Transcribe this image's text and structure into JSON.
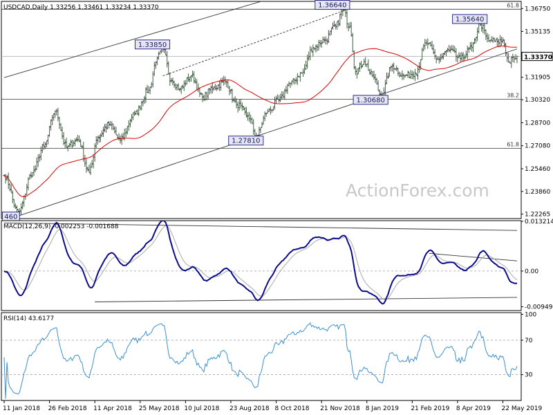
{
  "chart_data": [
    {
      "type": "ohlc",
      "panel": "price",
      "header": "USDCAD,Daily  1.33256 1.33461 1.33234 1.33370",
      "last_price": 1.3337,
      "last_price_label": "1.33370",
      "y_ticks": [
        1.3675,
        1.35135,
        1.3352,
        1.31905,
        1.3032,
        1.287,
        1.2708,
        1.2546,
        1.2386,
        1.22265
      ],
      "y_tick_labels": [
        "1.36750",
        "1.35135",
        "1.33520",
        "1.31905",
        "1.30320",
        "1.28700",
        "1.27080",
        "1.25460",
        "1.23860",
        "1.22265"
      ],
      "ylim": [
        1.2195,
        1.3725
      ],
      "x_ticks": [
        {
          "index": 0,
          "label": "11 Jan 2018"
        },
        {
          "index": 32,
          "label": "26 Feb 2018"
        },
        {
          "index": 64,
          "label": "11 Apr 2018"
        },
        {
          "index": 96,
          "label": "25 May 2018"
        },
        {
          "index": 128,
          "label": "10 Jul 2018"
        },
        {
          "index": 160,
          "label": "23 Aug 2018"
        },
        {
          "index": 192,
          "label": "8 Oct 2018"
        },
        {
          "index": 224,
          "label": "21 Nov 2018"
        },
        {
          "index": 256,
          "label": "8 Jan 2019"
        },
        {
          "index": 288,
          "label": "21 Feb 2019"
        },
        {
          "index": 320,
          "label": "8 Apr 2019"
        },
        {
          "index": 352,
          "label": "22 May 2019"
        }
      ],
      "x_range": [
        0,
        362
      ],
      "anchors": [
        [
          0,
          1.25
        ],
        [
          10,
          1.224
        ],
        [
          20,
          1.252
        ],
        [
          28,
          1.27
        ],
        [
          36,
          1.295
        ],
        [
          44,
          1.27
        ],
        [
          52,
          1.275
        ],
        [
          60,
          1.252
        ],
        [
          66,
          1.277
        ],
        [
          74,
          1.286
        ],
        [
          82,
          1.275
        ],
        [
          92,
          1.293
        ],
        [
          102,
          1.31
        ],
        [
          108,
          1.333
        ],
        [
          112,
          1.3385
        ],
        [
          118,
          1.317
        ],
        [
          124,
          1.311
        ],
        [
          132,
          1.32
        ],
        [
          140,
          1.305
        ],
        [
          148,
          1.312
        ],
        [
          156,
          1.316
        ],
        [
          164,
          1.3
        ],
        [
          172,
          1.292
        ],
        [
          178,
          1.2781
        ],
        [
          186,
          1.295
        ],
        [
          194,
          1.303
        ],
        [
          202,
          1.315
        ],
        [
          210,
          1.322
        ],
        [
          218,
          1.34
        ],
        [
          226,
          1.345
        ],
        [
          234,
          1.355
        ],
        [
          239,
          1.3664
        ],
        [
          244,
          1.355
        ],
        [
          248,
          1.323
        ],
        [
          254,
          1.33
        ],
        [
          260,
          1.32
        ],
        [
          266,
          1.3068
        ],
        [
          274,
          1.327
        ],
        [
          282,
          1.32
        ],
        [
          290,
          1.322
        ],
        [
          298,
          1.343
        ],
        [
          306,
          1.332
        ],
        [
          314,
          1.338
        ],
        [
          322,
          1.332
        ],
        [
          330,
          1.34
        ],
        [
          336,
          1.3564
        ],
        [
          342,
          1.345
        ],
        [
          348,
          1.344
        ],
        [
          352,
          1.345
        ],
        [
          356,
          1.33
        ],
        [
          360,
          1.332
        ],
        [
          362,
          1.3337
        ]
      ],
      "seed": 7,
      "noise": 0.0045,
      "ma_period": 55,
      "annotations": [
        {
          "index": 6,
          "value": 1.2246,
          "label": "460",
          "side": "below"
        },
        {
          "index": 112,
          "value": 1.3385,
          "label": "1.33850",
          "side": "above"
        },
        {
          "index": 239,
          "value": 1.3664,
          "label": "1.36640",
          "side": "above"
        },
        {
          "index": 178,
          "value": 1.2781,
          "label": "1.27810",
          "side": "below"
        },
        {
          "index": 266,
          "value": 1.3068,
          "label": "1.30680",
          "side": "below"
        },
        {
          "index": 336,
          "value": 1.3564,
          "label": "1.35640",
          "side": "above"
        }
      ],
      "fib_levels": [
        {
          "value": 1.367,
          "label": "61.8"
        },
        {
          "value": 1.3035,
          "label": "38.2"
        },
        {
          "value": 1.269,
          "label": "61.8"
        }
      ],
      "trend_lines": [
        {
          "from": [
            0,
            1.3188
          ],
          "to": [
            362,
            1.426
          ]
        },
        {
          "from": [
            0,
            1.218
          ],
          "to": [
            362,
            1.339
          ]
        },
        {
          "from": [
            112,
            1.32
          ],
          "to": [
            241,
            1.3664
          ],
          "dashed": true
        }
      ],
      "watermark": "ActionForex.com",
      "colors": {
        "bars": "#445a45",
        "ma": "#d90000",
        "label_border": "#2a2a8a",
        "label_bg": "#e6e6f5"
      }
    },
    {
      "type": "line",
      "panel": "macd",
      "header": "MACD(12,26,9) -0.002253 -0.001688",
      "y_ticks": [
        0.013214,
        0.0,
        -0.009496
      ],
      "y_tick_labels": [
        "0.013214",
        "0.00",
        "-0.009496"
      ],
      "ylim": [
        -0.0105,
        0.0134
      ],
      "series": [
        {
          "name": "MACD",
          "values_from": "price",
          "color": "#0a0a8c"
        },
        {
          "name": "Signal",
          "period": 9,
          "color": "#a8a8a8"
        }
      ],
      "trend_lines": [
        {
          "from": [
            0,
            0.0128
          ],
          "to": [
            362,
            0.0108
          ]
        },
        {
          "from": [
            64,
            -0.0082
          ],
          "to": [
            362,
            -0.007
          ]
        },
        {
          "from": [
            300,
            0.0047
          ],
          "to": [
            362,
            0.0027
          ]
        }
      ]
    },
    {
      "type": "line",
      "panel": "rsi",
      "header": "RSI(14) 43.6177",
      "y_ticks": [
        100,
        70,
        30
      ],
      "y_tick_labels": [
        "100",
        "70",
        "30"
      ],
      "ylim": [
        0,
        102
      ],
      "series": [
        {
          "name": "RSI",
          "period": 14,
          "color": "#3b8fd1"
        }
      ]
    }
  ]
}
